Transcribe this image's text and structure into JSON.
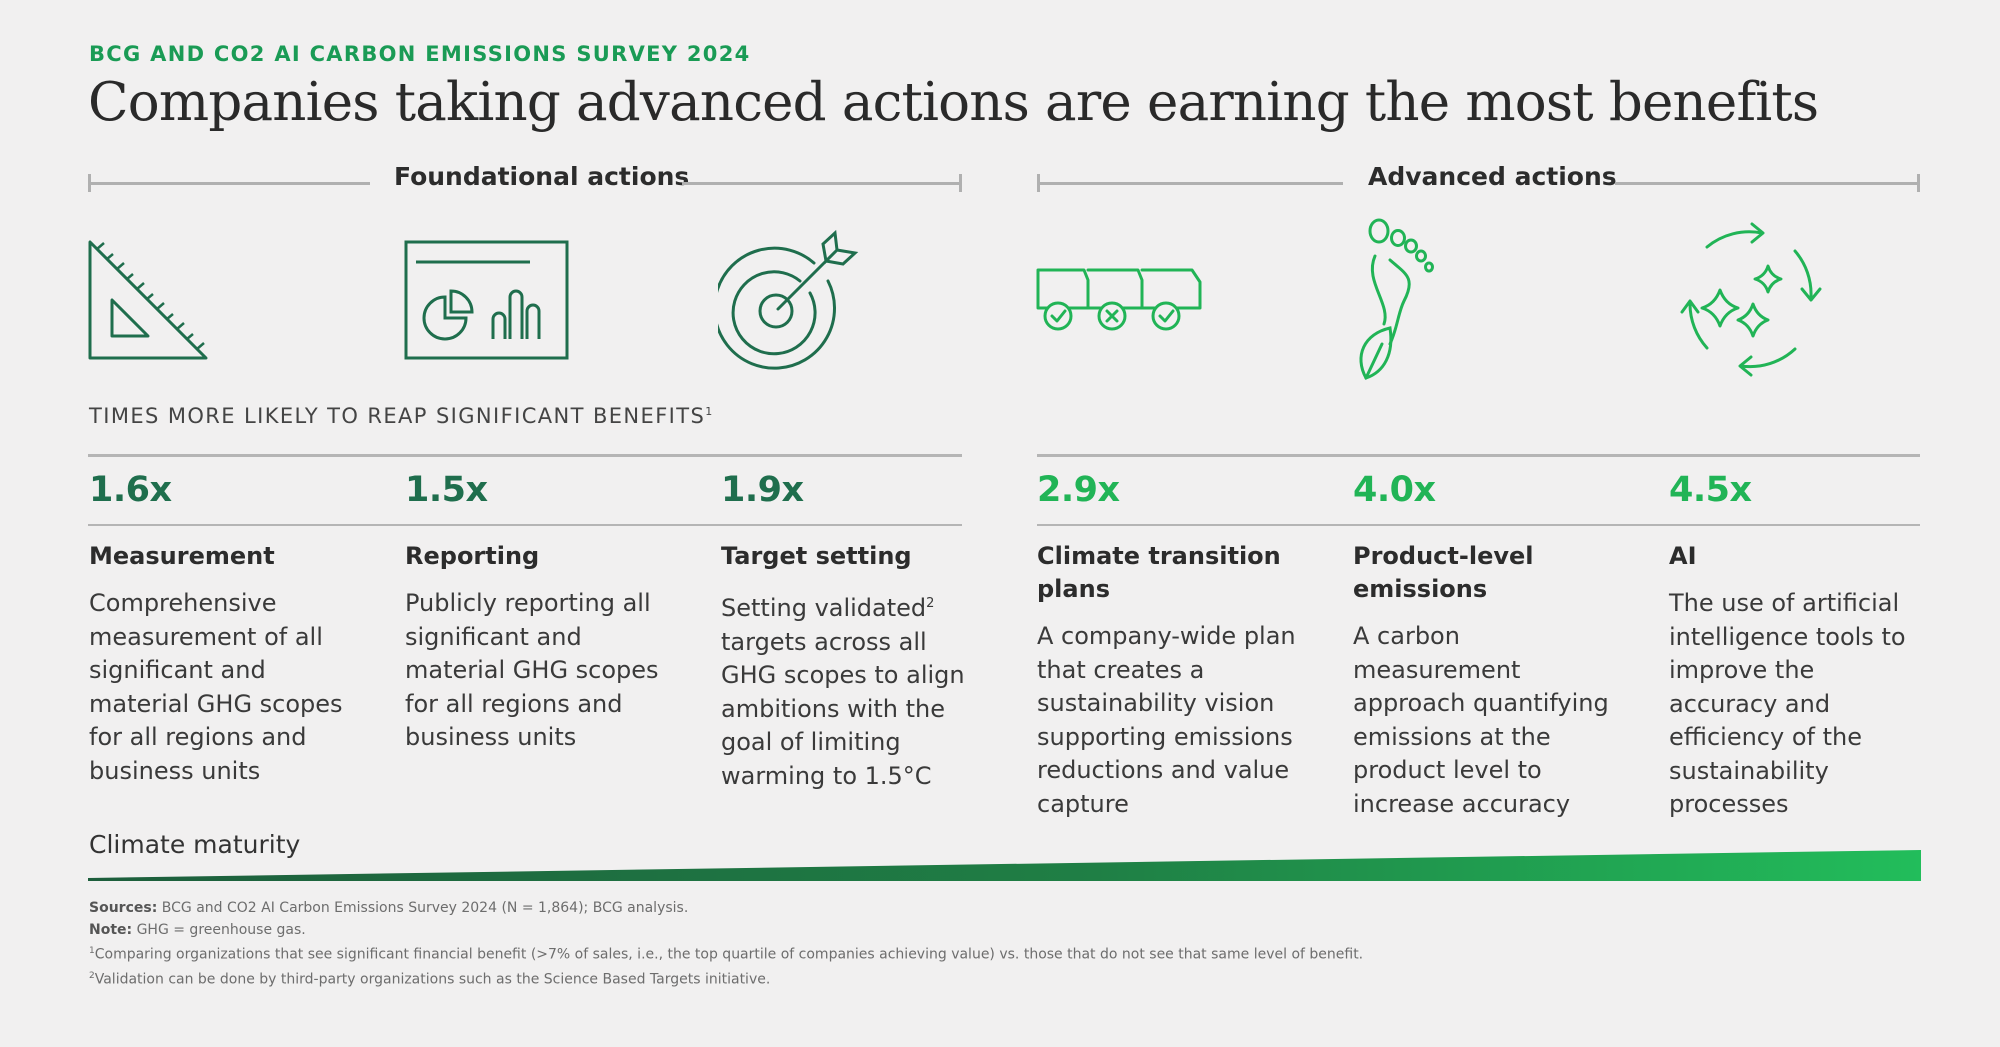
{
  "eyebrow": "BCG AND CO2 AI CARBON EMISSIONS SURVEY 2024",
  "headline": "Companies taking advanced actions are earning the most benefits",
  "groups": {
    "foundational": "Foundational actions",
    "advanced": "Advanced actions"
  },
  "subhead": {
    "text": "TIMES MORE LIKELY TO REAP SIGNIFICANT BENEFITS",
    "sup": "1"
  },
  "colors": {
    "dark_green": "#1f6e4d",
    "bright_green": "#21b456",
    "eyebrow_green": "#1a9b55"
  },
  "columns": [
    {
      "icon": "set-square-icon",
      "multiplier": "1.6x",
      "title": "Measurement",
      "desc": "Comprehensive measurement of all significant and material GHG scopes for all regions and business units"
    },
    {
      "icon": "report-dashboard-icon",
      "multiplier": "1.5x",
      "title": "Reporting",
      "desc": "Publicly reporting all significant and material GHG scopes for all regions and business units"
    },
    {
      "icon": "target-arrow-icon",
      "multiplier": "1.9x",
      "title": "Target setting",
      "desc_a": "Setting validated",
      "desc_sup": "2",
      "desc_b": " targets across all GHG scopes to align ambitions with the goal of limiting warming to 1.5°C"
    },
    {
      "icon": "truck-checks-icon",
      "multiplier": "2.9x",
      "title": "Climate transition plans",
      "desc": "A company-wide plan that creates a sustainability vision supporting emissions reductions and value capture"
    },
    {
      "icon": "footprint-leaf-icon",
      "multiplier": "4.0x",
      "title": "Product-level emissions",
      "desc": "A carbon measurement approach quantifying emissions at the product level to increase accuracy"
    },
    {
      "icon": "ai-sparkle-cycle-icon",
      "multiplier": "4.5x",
      "title": "AI",
      "desc": "The use of artificial intelligence tools to improve the accuracy and efficiency of the sustainability processes"
    }
  ],
  "maturity_label": "Climate maturity",
  "footnotes": {
    "sources_label": "Sources:",
    "sources_text": " BCG and CO2 AI Carbon Emissions Survey 2024 (N = 1,864); BCG analysis.",
    "note_label": "Note:",
    "note_text": " GHG = greenhouse gas.",
    "fn1_mark": "1",
    "fn1_text": "Comparing organizations that see significant financial benefit (>7% of sales, i.e., the top quartile of companies achieving value) vs. those that do not see that same level of benefit.",
    "fn2_mark": "2",
    "fn2_text": "Validation can be done by third-party organizations such as the Science Based Targets initiative."
  }
}
